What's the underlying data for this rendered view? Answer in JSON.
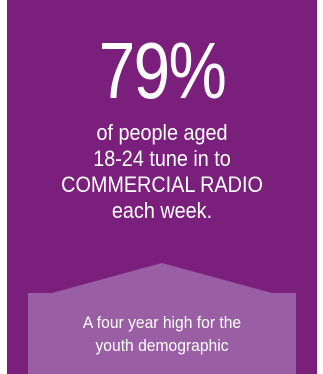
{
  "stat": {
    "value": "79%"
  },
  "headline": {
    "lines": [
      "of people aged",
      "18-24 tune in to",
      "COMMERCIAL RADIO",
      "each week."
    ]
  },
  "callout": {
    "lines": [
      "A four year high for the",
      "youth demographic"
    ]
  },
  "colors": {
    "background": "#7b1f7c",
    "callout": "#9a5ea4",
    "text": "#ffffff"
  }
}
